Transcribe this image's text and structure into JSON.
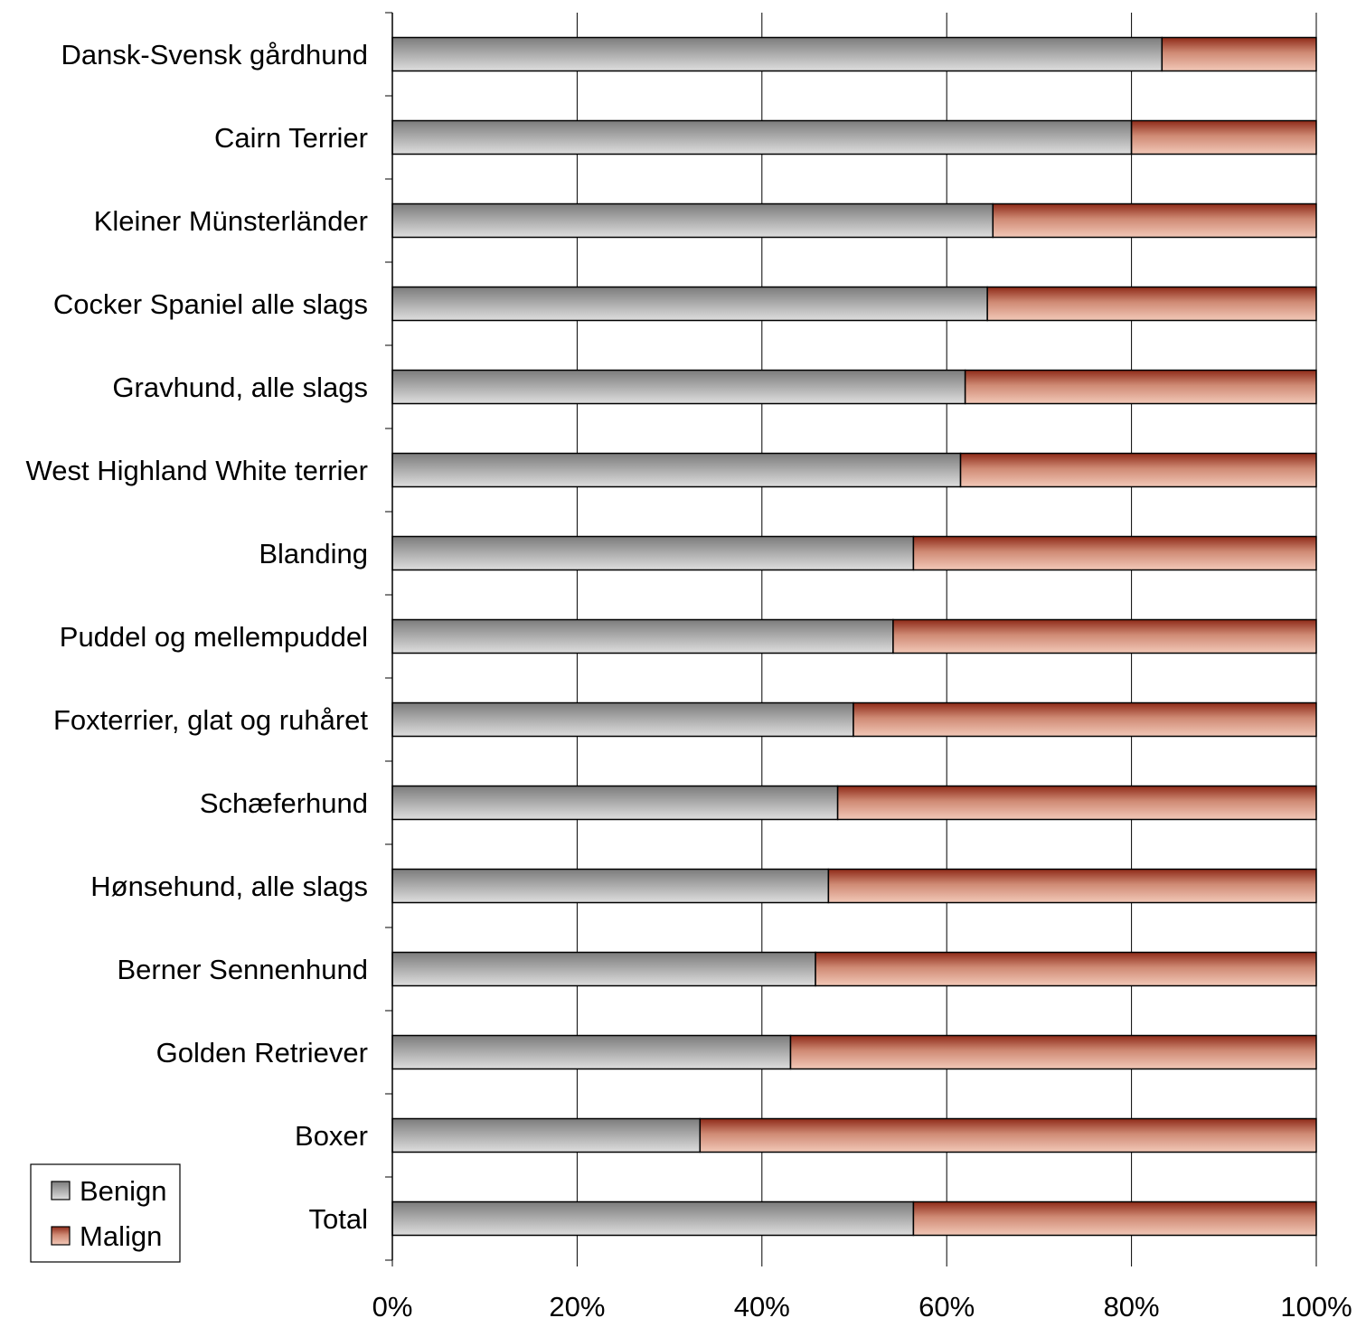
{
  "chart_data": {
    "type": "bar",
    "orientation": "horizontal",
    "stacked": "percent",
    "categories": [
      "Dansk-Svensk gårdhund",
      "Cairn Terrier",
      "Kleiner Münsterländer",
      "Cocker Spaniel alle slags",
      "Gravhund, alle slags",
      "West Highland White terrier",
      "Blanding",
      "Puddel og mellempuddel",
      "Foxterrier, glat og ruhåret",
      "Schæferhund",
      "Hønsehund, alle slags",
      "Berner Sennenhund",
      "Golden Retriever",
      "Boxer",
      "Total"
    ],
    "series": [
      {
        "name": "Benign",
        "color": "#a6a6a6",
        "values": [
          83.3,
          80,
          65,
          64.4,
          62,
          61.5,
          56.4,
          54.2,
          49.9,
          48.2,
          47.2,
          45.8,
          43.1,
          33.3,
          56.4
        ]
      },
      {
        "name": "Malign",
        "color": "#c0705a",
        "values": [
          16.7,
          20,
          35,
          35.6,
          38,
          38.5,
          43.6,
          45.8,
          50.1,
          51.8,
          52.8,
          54.2,
          56.9,
          66.7,
          43.6
        ]
      }
    ],
    "x_ticks": [
      "0%",
      "20%",
      "40%",
      "60%",
      "80%",
      "100%"
    ],
    "xlim": [
      0,
      100
    ],
    "grid": "vertical",
    "legend": "bottom-left"
  }
}
